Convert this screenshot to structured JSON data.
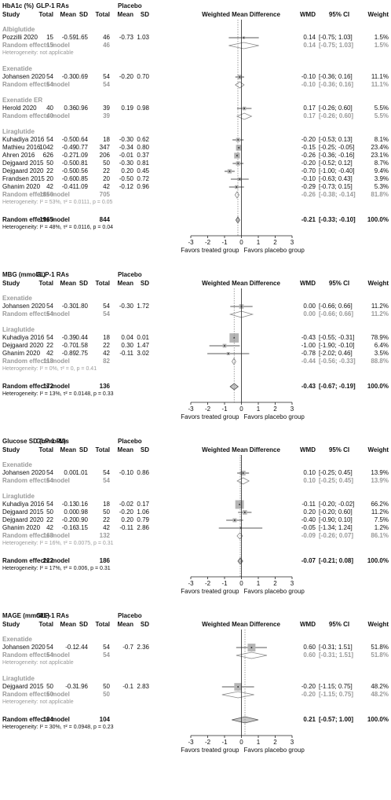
{
  "chart_data": [
    {
      "type": "forest",
      "title": "HbA1c (%)",
      "treated": "GLP-1 RAs",
      "placebo": "Placebo",
      "study": "Study",
      "columns": [
        "Total",
        "Mean",
        "SD",
        "Total",
        "Mean",
        "SD"
      ],
      "plot_title": "Weighted Mean Difference",
      "wmd_col": "WMD",
      "ci_col": "95% CI",
      "weight_col": "Weight",
      "xlim": [
        -3,
        3
      ],
      "xticks": [
        -3,
        -2,
        -1,
        0,
        1,
        2,
        3
      ],
      "left_label": "Favors treated group",
      "right_label": "Favors placebo group",
      "groups": [
        {
          "name": "Albiglutide",
          "rows": [
            {
              "study": "Pozzilli 2020",
              "t_total": "15",
              "t_mean": "-0.59",
              "t_sd": "1.65",
              "p_total": "46",
              "p_mean": "-0.73",
              "p_sd": "1.03",
              "wmd": 0.14,
              "lo": -0.75,
              "hi": 1.03,
              "wmd_label": "0.14",
              "ci_label": "[-0.75; 1.03]",
              "weight": 1.5,
              "weight_label": "1.5%"
            }
          ],
          "re": {
            "label": "Random effects model",
            "t_total": "15",
            "p_total": "46",
            "wmd": 0.14,
            "lo": -0.75,
            "hi": 1.03,
            "wmd_label": "0.14",
            "ci_label": "[-0.75; 1.03]",
            "weight": 1.5,
            "weight_label": "1.5%"
          },
          "heterogeneity": "Heterogeneity: not applicable"
        },
        {
          "name": "Exenatide",
          "rows": [
            {
              "study": "Johansen 2020",
              "t_total": "54",
              "t_mean": "-0.30",
              "t_sd": "0.69",
              "p_total": "54",
              "p_mean": "-0.20",
              "p_sd": "0.70",
              "wmd": -0.1,
              "lo": -0.36,
              "hi": 0.16,
              "wmd_label": "-0.10",
              "ci_label": "[-0.36; 0.16]",
              "weight": 11.1,
              "weight_label": "11.1%"
            }
          ],
          "re": {
            "label": "Random effects model",
            "t_total": "54",
            "p_total": "54",
            "wmd": -0.1,
            "lo": -0.36,
            "hi": 0.16,
            "wmd_label": "-0.10",
            "ci_label": "[-0.36; 0.16]",
            "weight": 11.1,
            "weight_label": "11.1%"
          }
        },
        {
          "name": "Exenatide ER",
          "rows": [
            {
              "study": "Herold 2020",
              "t_total": "40",
              "t_mean": "0.36",
              "t_sd": "0.96",
              "p_total": "39",
              "p_mean": "0.19",
              "p_sd": "0.98",
              "wmd": 0.17,
              "lo": -0.26,
              "hi": 0.6,
              "wmd_label": "0.17",
              "ci_label": "[-0.26; 0.60]",
              "weight": 5.5,
              "weight_label": "5.5%"
            }
          ],
          "re": {
            "label": "Random effects model",
            "t_total": "40",
            "p_total": "39",
            "wmd": 0.17,
            "lo": -0.26,
            "hi": 0.6,
            "wmd_label": "0.17",
            "ci_label": "[-0.26; 0.60]",
            "weight": 5.5,
            "weight_label": "5.5%"
          }
        },
        {
          "name": "Liraglutide",
          "rows": [
            {
              "study": "Kuhadiya 2016",
              "t_total": "54",
              "t_mean": "-0.50",
              "t_sd": "0.64",
              "p_total": "18",
              "p_mean": "-0.30",
              "p_sd": "0.62",
              "wmd": -0.2,
              "lo": -0.53,
              "hi": 0.13,
              "wmd_label": "-0.20",
              "ci_label": "[-0.53; 0.13]",
              "weight": 8.1,
              "weight_label": "8.1%"
            },
            {
              "study": "Mathieu 2016",
              "t_total": "1042",
              "t_mean": "-0.49",
              "t_sd": "0.77",
              "p_total": "347",
              "p_mean": "-0.34",
              "p_sd": "0.80",
              "wmd": -0.15,
              "lo": -0.25,
              "hi": -0.05,
              "wmd_label": "-0.15",
              "ci_label": "[-0.25; -0.05]",
              "weight": 23.4,
              "weight_label": "23.4%"
            },
            {
              "study": "Ahren 2016",
              "t_total": "626",
              "t_mean": "-0.27",
              "t_sd": "1.09",
              "p_total": "206",
              "p_mean": "-0.01",
              "p_sd": "0.37",
              "wmd": -0.26,
              "lo": -0.36,
              "hi": -0.16,
              "wmd_label": "-0.26",
              "ci_label": "[-0.36; -0.16]",
              "weight": 23.1,
              "weight_label": "23.1%"
            },
            {
              "study": "Dejgaard 2015",
              "t_total": "50",
              "t_mean": "-0.50",
              "t_sd": "0.81",
              "p_total": "50",
              "p_mean": "-0.30",
              "p_sd": "0.81",
              "wmd": -0.2,
              "lo": -0.52,
              "hi": 0.12,
              "wmd_label": "-0.20",
              "ci_label": "[-0.52; 0.12]",
              "weight": 8.7,
              "weight_label": "8.7%"
            },
            {
              "study": "Dejgaard 2020",
              "t_total": "22",
              "t_mean": "-0.50",
              "t_sd": "0.56",
              "p_total": "22",
              "p_mean": "0.20",
              "p_sd": "0.45",
              "wmd": -0.7,
              "lo": -1.0,
              "hi": -0.4,
              "wmd_label": "-0.70",
              "ci_label": "[-1.00; -0.40]",
              "weight": 9.4,
              "weight_label": "9.4%"
            },
            {
              "study": "Frandsen 2015",
              "t_total": "20",
              "t_mean": "-0.60",
              "t_sd": "0.85",
              "p_total": "20",
              "p_mean": "-0.50",
              "p_sd": "0.72",
              "wmd": -0.1,
              "lo": -0.63,
              "hi": 0.43,
              "wmd_label": "-0.10",
              "ci_label": "[-0.63; 0.43]",
              "weight": 3.9,
              "weight_label": "3.9%"
            },
            {
              "study": "Ghanim 2020",
              "t_total": "42",
              "t_mean": "-0.41",
              "t_sd": "1.09",
              "p_total": "42",
              "p_mean": "-0.12",
              "p_sd": "0.96",
              "wmd": -0.29,
              "lo": -0.73,
              "hi": 0.15,
              "wmd_label": "-0.29",
              "ci_label": "[-0.73; 0.15]",
              "weight": 5.3,
              "weight_label": "5.3%"
            }
          ],
          "re": {
            "label": "Random effects model",
            "t_total": "1856",
            "p_total": "705",
            "wmd": -0.26,
            "lo": -0.38,
            "hi": -0.14,
            "wmd_label": "-0.26",
            "ci_label": "[-0.38; -0.14]",
            "weight": 81.8,
            "weight_label": "81.8%"
          },
          "heterogeneity": "Heterogeneity: I² = 53%, τ² = 0.0111, p = 0.05"
        }
      ],
      "overall": {
        "label": "Random effects model",
        "t_total": "1965",
        "p_total": "844",
        "wmd": -0.21,
        "lo": -0.33,
        "hi": -0.1,
        "wmd_label": "-0.21",
        "ci_label": "[-0.33; -0.10]",
        "weight": 100,
        "weight_label": "100.0%",
        "heterogeneity": "Heterogeneity: I² = 48%, τ² = 0.0116, p = 0.04"
      }
    },
    {
      "type": "forest",
      "title": "MBG (mmol/L)",
      "treated": "GLP-1 RAs",
      "placebo": "Placebo",
      "study": "Study",
      "columns": [
        "Total",
        "Mean",
        "SD",
        "Total",
        "Mean",
        "SD"
      ],
      "plot_title": "Weighted Mean Difference",
      "wmd_col": "WMD",
      "ci_col": "95% CI",
      "weight_col": "Weight",
      "xlim": [
        -3,
        3
      ],
      "xticks": [
        -3,
        -2,
        -1,
        0,
        1,
        2,
        3
      ],
      "left_label": "Favors treated group",
      "right_label": "Favors placebo group",
      "groups": [
        {
          "name": "Exenatide",
          "rows": [
            {
              "study": "Johansen 2020",
              "t_total": "54",
              "t_mean": "-0.30",
              "t_sd": "1.80",
              "p_total": "54",
              "p_mean": "-0.30",
              "p_sd": "1.72",
              "wmd": 0.0,
              "lo": -0.66,
              "hi": 0.66,
              "wmd_label": "0.00",
              "ci_label": "[-0.66; 0.66]",
              "weight": 11.2,
              "weight_label": "11.2%"
            }
          ],
          "re": {
            "label": "Random effects model",
            "t_total": "54",
            "p_total": "54",
            "wmd": 0.0,
            "lo": -0.66,
            "hi": 0.66,
            "wmd_label": "0.00",
            "ci_label": "[-0.66; 0.66]",
            "weight": 11.2,
            "weight_label": "11.2%"
          }
        },
        {
          "name": "Liraglutide",
          "rows": [
            {
              "study": "Kuhadiya 2016",
              "t_total": "54",
              "t_mean": "-0.39",
              "t_sd": "0.44",
              "p_total": "18",
              "p_mean": "0.04",
              "p_sd": "0.01",
              "wmd": -0.43,
              "lo": -0.55,
              "hi": -0.31,
              "wmd_label": "-0.43",
              "ci_label": "[-0.55; -0.31]",
              "weight": 78.9,
              "weight_label": "78.9%"
            },
            {
              "study": "Dejgaard 2020",
              "t_total": "22",
              "t_mean": "-0.70",
              "t_sd": "1.58",
              "p_total": "22",
              "p_mean": "0.30",
              "p_sd": "1.47",
              "wmd": -1.0,
              "lo": -1.9,
              "hi": -0.1,
              "wmd_label": "-1.00",
              "ci_label": "[-1.90; -0.10]",
              "weight": 6.4,
              "weight_label": "6.4%"
            },
            {
              "study": "Ghanim 2020",
              "t_total": "42",
              "t_mean": "-0.89",
              "t_sd": "2.75",
              "p_total": "42",
              "p_mean": "-0.11",
              "p_sd": "3.02",
              "wmd": -0.78,
              "lo": -2.02,
              "hi": 0.46,
              "wmd_label": "-0.78",
              "ci_label": "[-2.02; 0.46]",
              "weight": 3.5,
              "weight_label": "3.5%"
            }
          ],
          "re": {
            "label": "Random effects model",
            "t_total": "118",
            "p_total": "82",
            "wmd": -0.44,
            "lo": -0.56,
            "hi": -0.33,
            "wmd_label": "-0.44",
            "ci_label": "[-0.56; -0.33]",
            "weight": 88.8,
            "weight_label": "88.8%"
          },
          "heterogeneity": "Heterogeneity: I² = 0%, τ² = 0, p = 0.41"
        }
      ],
      "overall": {
        "label": "Random effects model",
        "t_total": "172",
        "p_total": "136",
        "wmd": -0.43,
        "lo": -0.67,
        "hi": -0.19,
        "wmd_label": "-0.43",
        "ci_label": "[-0.67; -0.19]",
        "weight": 100,
        "weight_label": "100.0%",
        "heterogeneity": "Heterogeneity: I² = 13%, τ² = 0.0148, p = 0.33"
      }
    },
    {
      "type": "forest",
      "title": "Glucose SD (mmol/L)",
      "treated": "GLP-1 RAs",
      "placebo": "Placebo",
      "study": "Study",
      "columns": [
        "Total",
        "Mean",
        "SD",
        "Total",
        "Mean",
        "SD"
      ],
      "plot_title": "Weighted Mean Difference",
      "wmd_col": "WMD",
      "ci_col": "95% CI",
      "weight_col": "Weight",
      "xlim": [
        -3,
        3
      ],
      "xticks": [
        -3,
        -2,
        -1,
        0,
        1,
        2,
        3
      ],
      "left_label": "Favors treated group",
      "right_label": "Favors placebo group",
      "groups": [
        {
          "name": "Exenatide",
          "rows": [
            {
              "study": "Johansen 2020",
              "t_total": "54",
              "t_mean": "0.00",
              "t_sd": "1.01",
              "p_total": "54",
              "p_mean": "-0.10",
              "p_sd": "0.86",
              "wmd": 0.1,
              "lo": -0.25,
              "hi": 0.45,
              "wmd_label": "0.10",
              "ci_label": "[-0.25; 0.45]",
              "weight": 13.9,
              "weight_label": "13.9%"
            }
          ],
          "re": {
            "label": "Random effects model",
            "t_total": "54",
            "p_total": "54",
            "wmd": 0.1,
            "lo": -0.25,
            "hi": 0.45,
            "wmd_label": "0.10",
            "ci_label": "[-0.25; 0.45]",
            "weight": 13.9,
            "weight_label": "13.9%"
          }
        },
        {
          "name": "Liraglutide",
          "rows": [
            {
              "study": "Kuhadiya 2016",
              "t_total": "54",
              "t_mean": "-0.13",
              "t_sd": "0.16",
              "p_total": "18",
              "p_mean": "-0.02",
              "p_sd": "0.17",
              "wmd": -0.11,
              "lo": -0.2,
              "hi": -0.02,
              "wmd_label": "-0.11",
              "ci_label": "[-0.20; -0.02]",
              "weight": 66.2,
              "weight_label": "66.2%"
            },
            {
              "study": "Dejgaard 2015",
              "t_total": "50",
              "t_mean": "0.00",
              "t_sd": "0.98",
              "p_total": "50",
              "p_mean": "-0.20",
              "p_sd": "1.06",
              "wmd": 0.2,
              "lo": -0.2,
              "hi": 0.6,
              "wmd_label": "0.20",
              "ci_label": "[-0.20; 0.60]",
              "weight": 11.2,
              "weight_label": "11.2%"
            },
            {
              "study": "Dejgaard 2020",
              "t_total": "22",
              "t_mean": "-0.20",
              "t_sd": "0.90",
              "p_total": "22",
              "p_mean": "0.20",
              "p_sd": "0.79",
              "wmd": -0.4,
              "lo": -0.9,
              "hi": 0.1,
              "wmd_label": "-0.40",
              "ci_label": "[-0.90; 0.10]",
              "weight": 7.5,
              "weight_label": "7.5%"
            },
            {
              "study": "Ghanim 2020",
              "t_total": "42",
              "t_mean": "-0.16",
              "t_sd": "3.15",
              "p_total": "42",
              "p_mean": "-0.11",
              "p_sd": "2.86",
              "wmd": -0.05,
              "lo": -1.34,
              "hi": 1.24,
              "wmd_label": "-0.05",
              "ci_label": "[-1.34; 1.24]",
              "weight": 1.2,
              "weight_label": "1.2%"
            }
          ],
          "re": {
            "label": "Random effects model",
            "t_total": "168",
            "p_total": "132",
            "wmd": -0.09,
            "lo": -0.26,
            "hi": 0.07,
            "wmd_label": "-0.09",
            "ci_label": "[-0.26; 0.07]",
            "weight": 86.1,
            "weight_label": "86.1%"
          },
          "heterogeneity": "Heterogeneity: I² = 16%, τ² = 0.0075, p = 0.31"
        }
      ],
      "overall": {
        "label": "Random effects model",
        "t_total": "222",
        "p_total": "186",
        "wmd": -0.07,
        "lo": -0.21,
        "hi": 0.08,
        "wmd_label": "-0.07",
        "ci_label": "[-0.21; 0.08]",
        "weight": 100,
        "weight_label": "100.0%",
        "heterogeneity": "Heterogeneity: I² = 17%, τ² = 0.006, p = 0.31"
      }
    },
    {
      "type": "forest",
      "title": "MAGE (mmol/L)",
      "treated": "GLP-1 RAs",
      "placebo": "Placebo",
      "study": "Study",
      "columns": [
        "Total",
        "Mean",
        "SD",
        "Total",
        "Mean",
        "SD"
      ],
      "plot_title": "Weighted Mean Difference",
      "wmd_col": "WMD",
      "ci_col": "95% CI",
      "weight_col": "Weight",
      "xlim": [
        -3,
        3
      ],
      "xticks": [
        -3,
        -2,
        -1,
        0,
        1,
        2,
        3
      ],
      "left_label": "Favors treated group",
      "right_label": "Favors placebo group",
      "groups": [
        {
          "name": "Exenatide",
          "rows": [
            {
              "study": "Johansen 2020",
              "t_total": "54",
              "t_mean": "-0.1",
              "t_sd": "2.44",
              "p_total": "54",
              "p_mean": "-0.7",
              "p_sd": "2.36",
              "wmd": 0.6,
              "lo": -0.31,
              "hi": 1.51,
              "wmd_label": "0.60",
              "ci_label": "[-0.31; 1.51]",
              "weight": 51.8,
              "weight_label": "51.8%"
            }
          ],
          "re": {
            "label": "Random effects model",
            "t_total": "54",
            "p_total": "54",
            "wmd": 0.6,
            "lo": -0.31,
            "hi": 1.51,
            "wmd_label": "0.60",
            "ci_label": "[-0.31; 1.51]",
            "weight": 51.8,
            "weight_label": "51.8%"
          },
          "heterogeneity": "Heterogeneity: not applicable"
        },
        {
          "name": "Liraglutide",
          "rows": [
            {
              "study": "Dejgaard 2015",
              "t_total": "50",
              "t_mean": "-0.3",
              "t_sd": "1.96",
              "p_total": "50",
              "p_mean": "-0.1",
              "p_sd": "2.83",
              "wmd": -0.2,
              "lo": -1.15,
              "hi": 0.75,
              "wmd_label": "-0.20",
              "ci_label": "[-1.15; 0.75]",
              "weight": 48.2,
              "weight_label": "48.2%"
            }
          ],
          "re": {
            "label": "Random effects model",
            "t_total": "50",
            "p_total": "50",
            "wmd": -0.2,
            "lo": -1.15,
            "hi": 0.75,
            "wmd_label": "-0.20",
            "ci_label": "[-1.15; 0.75]",
            "weight": 48.2,
            "weight_label": "48.2%"
          },
          "heterogeneity": "Heterogeneity: not applicable"
        }
      ],
      "overall": {
        "label": "Random effects model",
        "t_total": "104",
        "p_total": "104",
        "wmd": 0.21,
        "lo": -0.57,
        "hi": 1.0,
        "wmd_label": "0.21",
        "ci_label": "[-0.57; 1.00]",
        "weight": 100,
        "weight_label": "100.0%",
        "heterogeneity": "Heterogeneity: I² = 30%, τ² = 0.0948, p = 0.23"
      }
    }
  ]
}
